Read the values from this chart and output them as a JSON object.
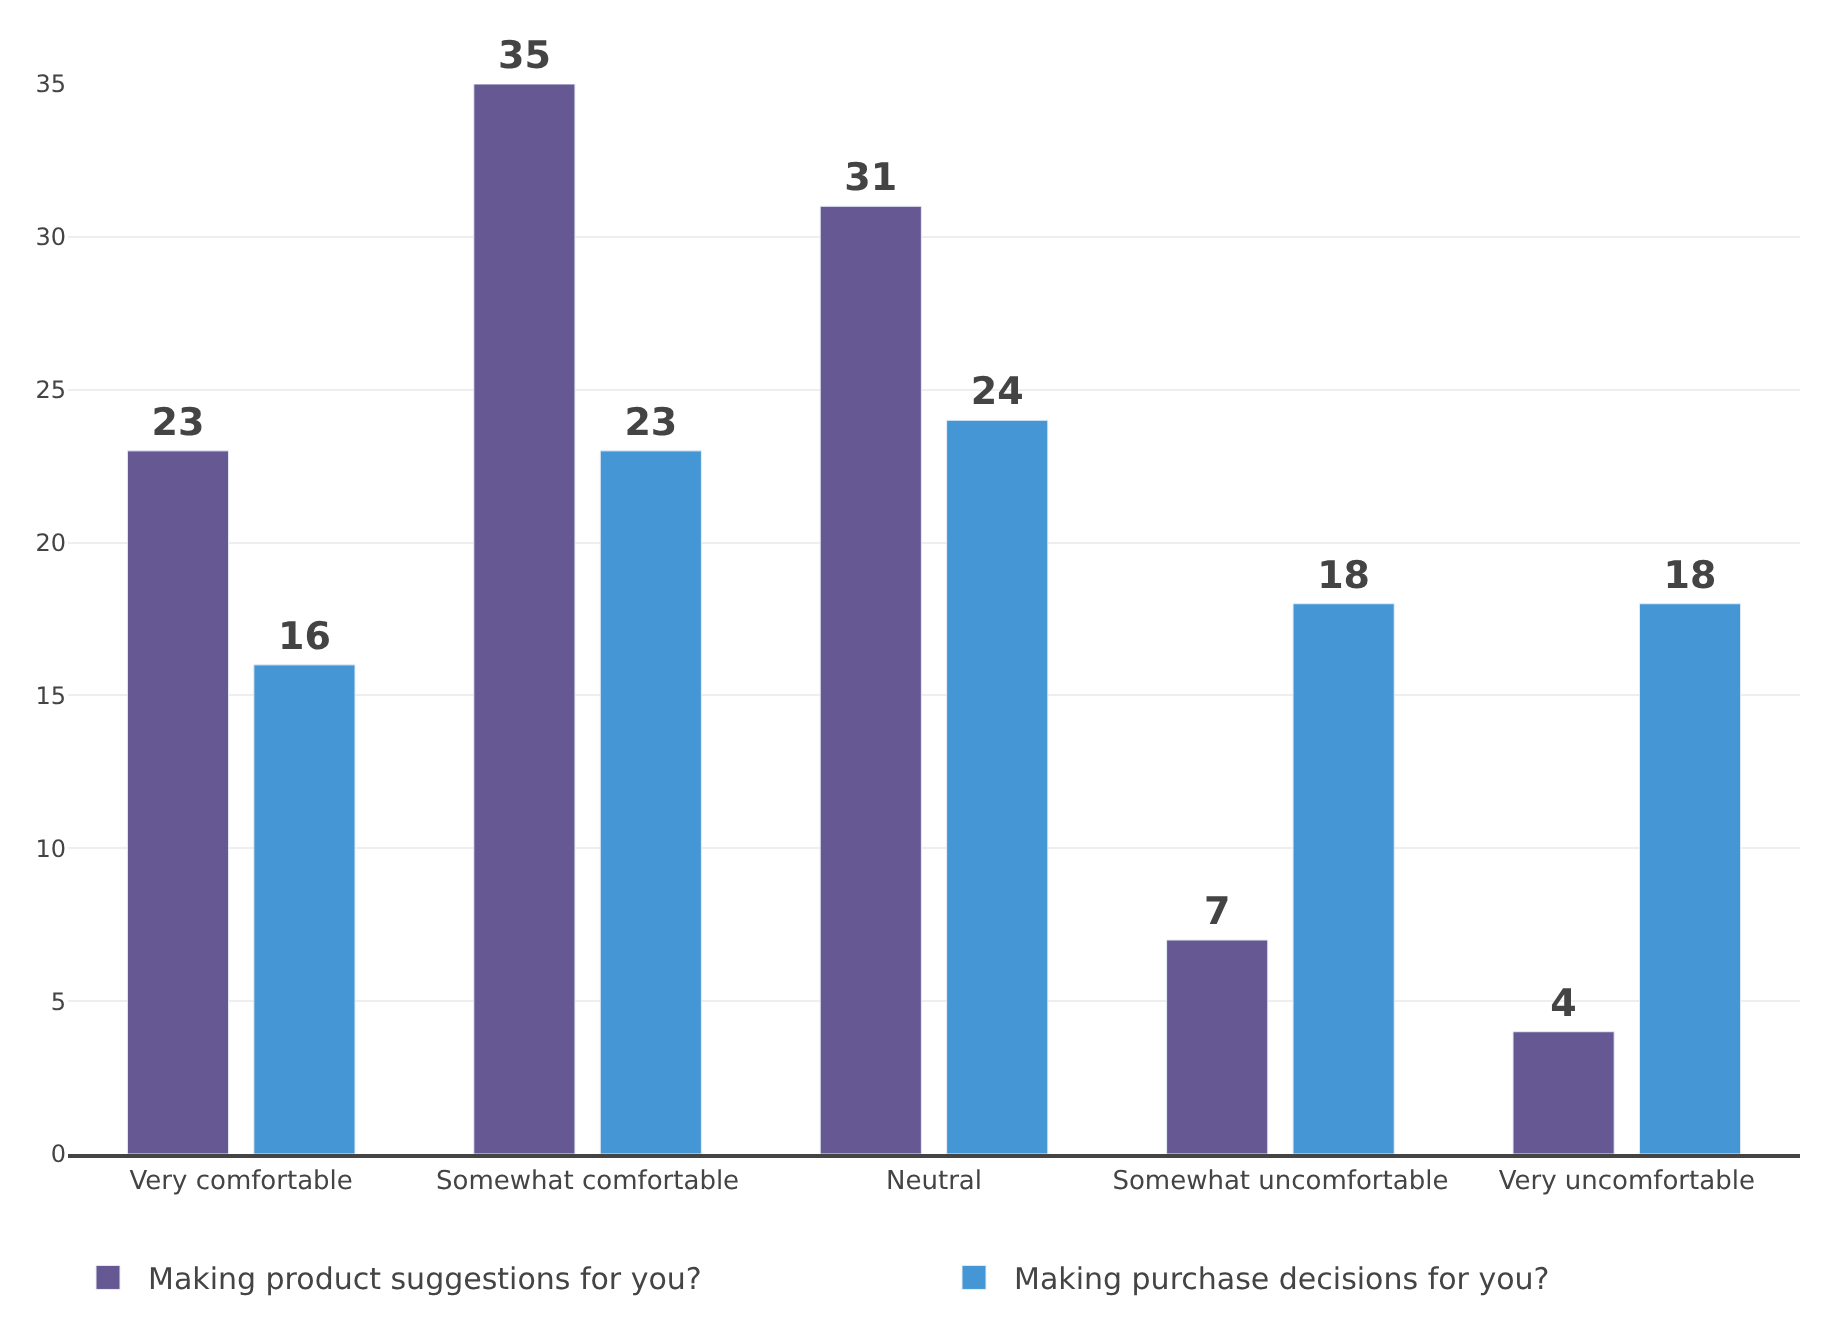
{
  "chart_data": {
    "type": "bar",
    "categories": [
      "Very comfortable",
      "Somewhat comfortable",
      "Neutral",
      "Somewhat uncomfortable",
      "Very uncomfortable"
    ],
    "series": [
      {
        "name": "Making product suggestions for you?",
        "color": "#655893",
        "values": [
          23,
          35,
          31,
          7,
          4
        ]
      },
      {
        "name": "Making purchase decisions for you?",
        "color": "#4596d4",
        "values": [
          16,
          23,
          24,
          18,
          18
        ]
      }
    ],
    "ylim": [
      0,
      35
    ],
    "yticks": [
      0,
      5,
      10,
      15,
      20,
      25,
      30,
      35
    ],
    "grid": "y",
    "legend": "bottom",
    "data_labels": true
  }
}
